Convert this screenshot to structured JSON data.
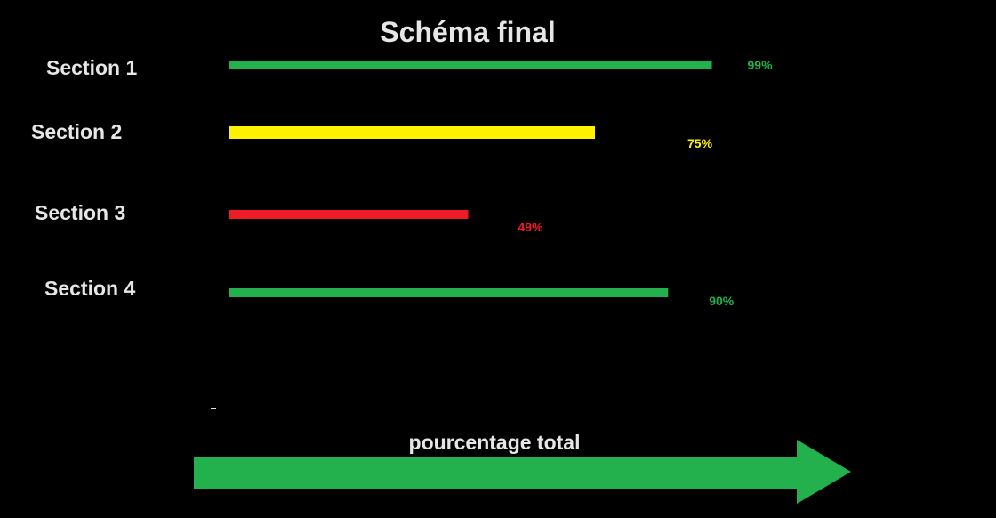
{
  "chart_data": {
    "type": "bar",
    "orientation": "horizontal",
    "title": "Schéma final",
    "categories": [
      "Section 1",
      "Section 2",
      "Section 3",
      "Section 4"
    ],
    "values": [
      99,
      75,
      49,
      90
    ],
    "value_labels": [
      "99%",
      "75%",
      "49%",
      "90%"
    ],
    "colors": [
      "#22b14c",
      "#fff200",
      "#ed1c24",
      "#22b14c"
    ],
    "xlim": [
      0,
      100
    ],
    "xlabel": "pourcentage total",
    "grid": false,
    "legend": "none"
  }
}
